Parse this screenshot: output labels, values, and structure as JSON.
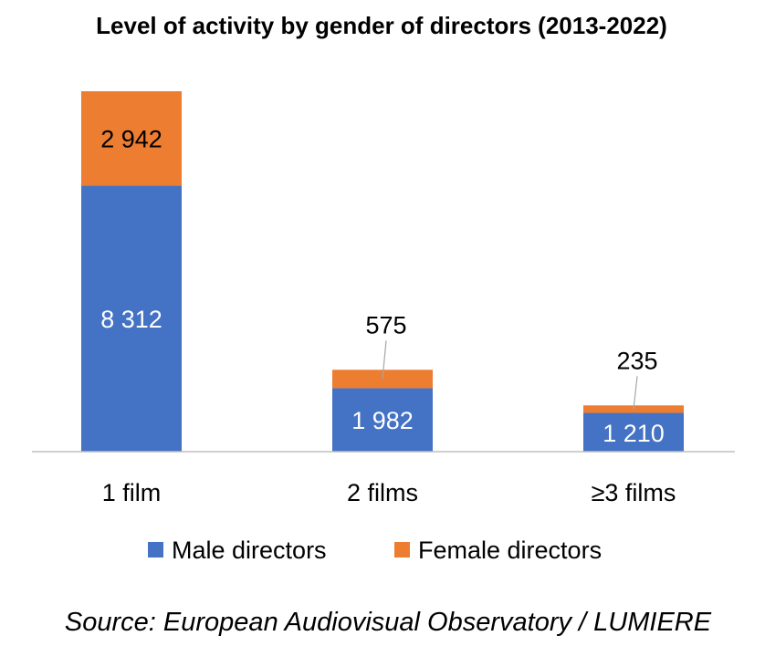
{
  "chart_data": {
    "type": "bar",
    "stacked": true,
    "title": "Level of activity by gender of directors (2013-2022)",
    "categories": [
      "1 film",
      "2 films",
      "≥3 films"
    ],
    "series": [
      {
        "name": "Male directors",
        "values": [
          8312,
          1982,
          1210
        ],
        "labels": [
          "8 312",
          "1 982",
          "1 210"
        ],
        "color": "#4472C4"
      },
      {
        "name": "Female directors",
        "values": [
          2942,
          575,
          235
        ],
        "labels": [
          "2 942",
          "575",
          "235"
        ],
        "color": "#ED7D31"
      }
    ],
    "xlabel": "",
    "ylabel": "",
    "ylim": [
      0,
      11254
    ],
    "grid": false,
    "legend": "bottom",
    "source": "Source: European Audiovisual Observatory / LUMIERE"
  }
}
